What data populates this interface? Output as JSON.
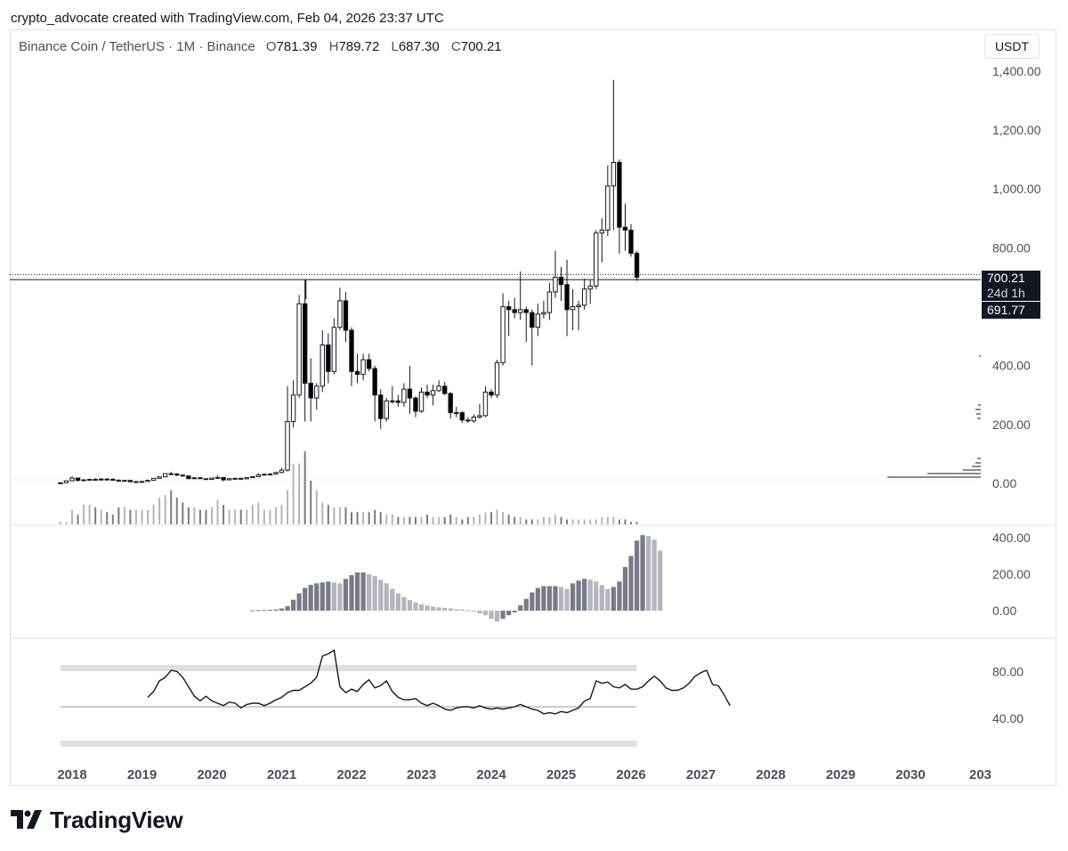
{
  "header": {
    "credit": "crypto_advocate created with TradingView.com, Feb 04, 2026 23:37 UTC"
  },
  "legend": {
    "symbol": "Binance Coin / TetherUS · 1M · Binance",
    "o_label": "O",
    "o_value": "781.39",
    "h_label": "H",
    "h_value": "789.72",
    "l_label": "L",
    "l_value": "687.30",
    "c_label": "C",
    "c_value": "700.21"
  },
  "currency_button": "USDT",
  "price_tags": {
    "last": "700.21",
    "countdown": "24d 1h",
    "level": "691.77"
  },
  "logo": {
    "word": "TradingView"
  },
  "colors": {
    "up": "#ffffff",
    "down": "#000000",
    "wick": "#131722",
    "rsi_line": "#131722",
    "rsi_hot": "#1e3a8a",
    "macd_dark": "#787b86",
    "macd_light": "#b2b5be",
    "band": "#e0e0e0"
  },
  "chart_data": [
    {
      "type": "candlestick",
      "pane": "price",
      "title": "Binance Coin / TetherUS · 1M · Binance",
      "y_axis_ticks": [
        "1,400.00",
        "1,200.00",
        "1,000.00",
        "800.00",
        "400.00",
        "200.00",
        "0.00"
      ],
      "ylim": [
        0,
        1400
      ],
      "x_axis_ticks": [
        "2018",
        "2019",
        "2020",
        "2021",
        "2022",
        "2023",
        "2024",
        "2025",
        "2026",
        "2027",
        "2028",
        "2029",
        "2030",
        "203"
      ],
      "horizontal_level": 691.77,
      "last_price": 700.21,
      "series": [
        {
          "date": "2017-11",
          "o": 1.5,
          "h": 2.5,
          "l": 1.0,
          "c": 2.0
        },
        {
          "date": "2017-12",
          "o": 2.0,
          "h": 9.0,
          "l": 1.8,
          "c": 8.6
        },
        {
          "date": "2018-01",
          "o": 8.6,
          "h": 25.0,
          "l": 8.0,
          "c": 18.0
        },
        {
          "date": "2018-02",
          "o": 18.0,
          "h": 20.0,
          "l": 6.5,
          "c": 10.0
        },
        {
          "date": "2018-03",
          "o": 10.0,
          "h": 14.0,
          "l": 9.5,
          "c": 12.0
        },
        {
          "date": "2018-04",
          "o": 12.0,
          "h": 16.0,
          "l": 11.0,
          "c": 13.5
        },
        {
          "date": "2018-05",
          "o": 13.5,
          "h": 17.5,
          "l": 12.5,
          "c": 13.0
        },
        {
          "date": "2018-06",
          "o": 13.0,
          "h": 18.0,
          "l": 12.0,
          "c": 14.5
        },
        {
          "date": "2018-07",
          "o": 14.5,
          "h": 18.0,
          "l": 13.5,
          "c": 14.0
        },
        {
          "date": "2018-08",
          "o": 14.0,
          "h": 17.0,
          "l": 9.0,
          "c": 10.5
        },
        {
          "date": "2018-09",
          "o": 10.5,
          "h": 14.0,
          "l": 9.5,
          "c": 10.0
        },
        {
          "date": "2018-10",
          "o": 10.0,
          "h": 11.0,
          "l": 9.5,
          "c": 10.0
        },
        {
          "date": "2018-11",
          "o": 10.0,
          "h": 10.5,
          "l": 5.0,
          "c": 5.5
        },
        {
          "date": "2018-12",
          "o": 5.5,
          "h": 7.0,
          "l": 4.5,
          "c": 6.0
        },
        {
          "date": "2019-01",
          "o": 6.0,
          "h": 7.0,
          "l": 5.0,
          "c": 6.5
        },
        {
          "date": "2019-02",
          "o": 6.5,
          "h": 11.5,
          "l": 6.0,
          "c": 10.5
        },
        {
          "date": "2019-03",
          "o": 10.5,
          "h": 17.0,
          "l": 10.0,
          "c": 17.0
        },
        {
          "date": "2019-04",
          "o": 17.0,
          "h": 25.0,
          "l": 16.0,
          "c": 22.0
        },
        {
          "date": "2019-05",
          "o": 22.0,
          "h": 34.0,
          "l": 20.0,
          "c": 33.0
        },
        {
          "date": "2019-06",
          "o": 33.0,
          "h": 39.0,
          "l": 28.0,
          "c": 32.0
        },
        {
          "date": "2019-07",
          "o": 32.0,
          "h": 35.0,
          "l": 25.0,
          "c": 28.0
        },
        {
          "date": "2019-08",
          "o": 28.0,
          "h": 30.0,
          "l": 22.0,
          "c": 25.0
        },
        {
          "date": "2019-09",
          "o": 25.0,
          "h": 27.0,
          "l": 15.0,
          "c": 16.0
        },
        {
          "date": "2019-10",
          "o": 16.0,
          "h": 21.0,
          "l": 14.5,
          "c": 19.0
        },
        {
          "date": "2019-11",
          "o": 19.0,
          "h": 22.0,
          "l": 15.0,
          "c": 16.0
        },
        {
          "date": "2019-12",
          "o": 16.0,
          "h": 16.5,
          "l": 12.5,
          "c": 13.5
        },
        {
          "date": "2020-01",
          "o": 13.5,
          "h": 19.0,
          "l": 13.0,
          "c": 18.0
        },
        {
          "date": "2020-02",
          "o": 18.0,
          "h": 27.0,
          "l": 17.5,
          "c": 20.0
        },
        {
          "date": "2020-03",
          "o": 20.0,
          "h": 21.0,
          "l": 6.5,
          "c": 12.0
        },
        {
          "date": "2020-04",
          "o": 12.0,
          "h": 17.5,
          "l": 11.0,
          "c": 16.0
        },
        {
          "date": "2020-05",
          "o": 16.0,
          "h": 18.5,
          "l": 14.0,
          "c": 17.0
        },
        {
          "date": "2020-06",
          "o": 17.0,
          "h": 19.0,
          "l": 15.0,
          "c": 15.5
        },
        {
          "date": "2020-07",
          "o": 15.5,
          "h": 20.0,
          "l": 15.0,
          "c": 19.5
        },
        {
          "date": "2020-08",
          "o": 19.5,
          "h": 25.0,
          "l": 19.0,
          "c": 23.0
        },
        {
          "date": "2020-09",
          "o": 23.0,
          "h": 35.0,
          "l": 21.0,
          "c": 29.0
        },
        {
          "date": "2020-10",
          "o": 29.0,
          "h": 33.0,
          "l": 27.0,
          "c": 31.0
        },
        {
          "date": "2020-11",
          "o": 31.0,
          "h": 34.0,
          "l": 26.0,
          "c": 32.0
        },
        {
          "date": "2020-12",
          "o": 32.0,
          "h": 40.0,
          "l": 29.0,
          "c": 37.0
        },
        {
          "date": "2021-01",
          "o": 37.0,
          "h": 52.0,
          "l": 35.0,
          "c": 45.0
        },
        {
          "date": "2021-02",
          "o": 45.0,
          "h": 330.0,
          "l": 40.0,
          "c": 210.0
        },
        {
          "date": "2021-03",
          "o": 210.0,
          "h": 350.0,
          "l": 190.0,
          "c": 300.0
        },
        {
          "date": "2021-04",
          "o": 300.0,
          "h": 640.0,
          "l": 290.0,
          "c": 610.0
        },
        {
          "date": "2021-05",
          "o": 610.0,
          "h": 691.77,
          "l": 210.0,
          "c": 340.0
        },
        {
          "date": "2021-06",
          "o": 340.0,
          "h": 425.0,
          "l": 210.0,
          "c": 290.0
        },
        {
          "date": "2021-07",
          "o": 290.0,
          "h": 340.0,
          "l": 250.0,
          "c": 330.0
        },
        {
          "date": "2021-08",
          "o": 330.0,
          "h": 520.0,
          "l": 310.0,
          "c": 470.0
        },
        {
          "date": "2021-09",
          "o": 470.0,
          "h": 510.0,
          "l": 340.0,
          "c": 380.0
        },
        {
          "date": "2021-10",
          "o": 380.0,
          "h": 560.0,
          "l": 370.0,
          "c": 530.0
        },
        {
          "date": "2021-11",
          "o": 530.0,
          "h": 665.0,
          "l": 520.0,
          "c": 620.0
        },
        {
          "date": "2021-12",
          "o": 620.0,
          "h": 650.0,
          "l": 480.0,
          "c": 520.0
        },
        {
          "date": "2022-01",
          "o": 520.0,
          "h": 530.0,
          "l": 330.0,
          "c": 380.0
        },
        {
          "date": "2022-02",
          "o": 380.0,
          "h": 440.0,
          "l": 340.0,
          "c": 370.0
        },
        {
          "date": "2022-03",
          "o": 370.0,
          "h": 440.0,
          "l": 350.0,
          "c": 420.0
        },
        {
          "date": "2022-04",
          "o": 420.0,
          "h": 440.0,
          "l": 380.0,
          "c": 390.0
        },
        {
          "date": "2022-05",
          "o": 390.0,
          "h": 400.0,
          "l": 210.0,
          "c": 300.0
        },
        {
          "date": "2022-06",
          "o": 300.0,
          "h": 320.0,
          "l": 185.0,
          "c": 220.0
        },
        {
          "date": "2022-07",
          "o": 220.0,
          "h": 290.0,
          "l": 210.0,
          "c": 280.0
        },
        {
          "date": "2022-08",
          "o": 280.0,
          "h": 330.0,
          "l": 270.0,
          "c": 280.0
        },
        {
          "date": "2022-09",
          "o": 280.0,
          "h": 300.0,
          "l": 260.0,
          "c": 275.0
        },
        {
          "date": "2022-10",
          "o": 275.0,
          "h": 340.0,
          "l": 260.0,
          "c": 320.0
        },
        {
          "date": "2022-11",
          "o": 320.0,
          "h": 400.0,
          "l": 235.0,
          "c": 290.0
        },
        {
          "date": "2022-12",
          "o": 290.0,
          "h": 295.0,
          "l": 225.0,
          "c": 245.0
        },
        {
          "date": "2023-01",
          "o": 245.0,
          "h": 325.0,
          "l": 240.0,
          "c": 310.0
        },
        {
          "date": "2023-02",
          "o": 310.0,
          "h": 335.0,
          "l": 290.0,
          "c": 300.0
        },
        {
          "date": "2023-03",
          "o": 300.0,
          "h": 335.0,
          "l": 265.0,
          "c": 315.0
        },
        {
          "date": "2023-04",
          "o": 315.0,
          "h": 350.0,
          "l": 310.0,
          "c": 330.0
        },
        {
          "date": "2023-05",
          "o": 330.0,
          "h": 345.0,
          "l": 300.0,
          "c": 305.0
        },
        {
          "date": "2023-06",
          "o": 305.0,
          "h": 310.0,
          "l": 220.0,
          "c": 240.0
        },
        {
          "date": "2023-07",
          "o": 240.0,
          "h": 260.0,
          "l": 225.0,
          "c": 240.0
        },
        {
          "date": "2023-08",
          "o": 240.0,
          "h": 245.0,
          "l": 205.0,
          "c": 215.0
        },
        {
          "date": "2023-09",
          "o": 215.0,
          "h": 225.0,
          "l": 205.0,
          "c": 212.0
        },
        {
          "date": "2023-10",
          "o": 212.0,
          "h": 235.0,
          "l": 205.0,
          "c": 225.0
        },
        {
          "date": "2023-11",
          "o": 225.0,
          "h": 270.0,
          "l": 220.0,
          "c": 230.0
        },
        {
          "date": "2023-12",
          "o": 230.0,
          "h": 330.0,
          "l": 225.0,
          "c": 310.0
        },
        {
          "date": "2024-01",
          "o": 310.0,
          "h": 320.0,
          "l": 290.0,
          "c": 300.0
        },
        {
          "date": "2024-02",
          "o": 300.0,
          "h": 420.0,
          "l": 290.0,
          "c": 410.0
        },
        {
          "date": "2024-03",
          "o": 410.0,
          "h": 645.0,
          "l": 400.0,
          "c": 600.0
        },
        {
          "date": "2024-04",
          "o": 600.0,
          "h": 620.0,
          "l": 500.0,
          "c": 590.0
        },
        {
          "date": "2024-05",
          "o": 590.0,
          "h": 630.0,
          "l": 560.0,
          "c": 580.0
        },
        {
          "date": "2024-06",
          "o": 580.0,
          "h": 720.0,
          "l": 555.0,
          "c": 590.0
        },
        {
          "date": "2024-07",
          "o": 590.0,
          "h": 600.0,
          "l": 480.0,
          "c": 580.0
        },
        {
          "date": "2024-08",
          "o": 580.0,
          "h": 590.0,
          "l": 400.0,
          "c": 530.0
        },
        {
          "date": "2024-09",
          "o": 530.0,
          "h": 610.0,
          "l": 500.0,
          "c": 575.0
        },
        {
          "date": "2024-10",
          "o": 575.0,
          "h": 620.0,
          "l": 560.0,
          "c": 580.0
        },
        {
          "date": "2024-11",
          "o": 580.0,
          "h": 680.0,
          "l": 555.0,
          "c": 650.0
        },
        {
          "date": "2024-12",
          "o": 650.0,
          "h": 790.0,
          "l": 630.0,
          "c": 700.0
        },
        {
          "date": "2025-01",
          "o": 700.0,
          "h": 735.0,
          "l": 620.0,
          "c": 675.0
        },
        {
          "date": "2025-02",
          "o": 675.0,
          "h": 760.0,
          "l": 500.0,
          "c": 590.0
        },
        {
          "date": "2025-03",
          "o": 590.0,
          "h": 660.0,
          "l": 520.0,
          "c": 600.0
        },
        {
          "date": "2025-04",
          "o": 600.0,
          "h": 620.0,
          "l": 520.0,
          "c": 605.0
        },
        {
          "date": "2025-05",
          "o": 605.0,
          "h": 695.0,
          "l": 590.0,
          "c": 660.0
        },
        {
          "date": "2025-06",
          "o": 660.0,
          "h": 690.0,
          "l": 610.0,
          "c": 670.0
        },
        {
          "date": "2025-07",
          "o": 670.0,
          "h": 860.0,
          "l": 660.0,
          "c": 850.0
        },
        {
          "date": "2025-08",
          "o": 850.0,
          "h": 900.0,
          "l": 750.0,
          "c": 860.0
        },
        {
          "date": "2025-09",
          "o": 860.0,
          "h": 1080.0,
          "l": 840.0,
          "c": 1010.0
        },
        {
          "date": "2025-10",
          "o": 1010.0,
          "h": 1370.0,
          "l": 860.0,
          "c": 1090.0
        },
        {
          "date": "2025-11",
          "o": 1090.0,
          "h": 1100.0,
          "l": 780.0,
          "c": 870.0
        },
        {
          "date": "2025-12",
          "o": 870.0,
          "h": 950.0,
          "l": 790.0,
          "c": 860.0
        },
        {
          "date": "2026-01",
          "o": 860.0,
          "h": 880.0,
          "l": 770.0,
          "c": 781.39
        },
        {
          "date": "2026-02",
          "o": 781.39,
          "h": 789.72,
          "l": 687.3,
          "c": 700.21
        }
      ],
      "volume": [
        1,
        1,
        6,
        4,
        8,
        8,
        7,
        6,
        5,
        4,
        7,
        7,
        6,
        6,
        6,
        6,
        8,
        11,
        12,
        14,
        11,
        9,
        7,
        7,
        6,
        6,
        7,
        10,
        8,
        6,
        6,
        6,
        6,
        8,
        9,
        6,
        6,
        7,
        8,
        14,
        25,
        25,
        30,
        18,
        14,
        9,
        8,
        7,
        7,
        7,
        5,
        5,
        5,
        5,
        6,
        5,
        4,
        4,
        3,
        3,
        3,
        3,
        3,
        4,
        3,
        3,
        3,
        4,
        3,
        2,
        3,
        3,
        4,
        5,
        5,
        6,
        5,
        4,
        3,
        3,
        2,
        2,
        2,
        3,
        3,
        4,
        3,
        2,
        2,
        2,
        2,
        2,
        2,
        3,
        3,
        3,
        2,
        2,
        1,
        1
      ],
      "volume_profile": "horizontal histogram at right edge, concentrated near 0 - 200"
    },
    {
      "type": "bar",
      "pane": "oscillator",
      "y_axis_ticks": [
        "400.00",
        "200.00",
        "0.00"
      ],
      "ylim": [
        -100,
        420
      ],
      "start": "2020-08",
      "values": [
        2,
        3,
        4,
        5,
        6,
        12,
        25,
        60,
        95,
        125,
        142,
        150,
        155,
        160,
        155,
        150,
        175,
        195,
        210,
        210,
        200,
        190,
        170,
        150,
        120,
        95,
        75,
        58,
        45,
        35,
        28,
        22,
        18,
        15,
        12,
        8,
        6,
        3,
        -5,
        -15,
        -25,
        -45,
        -60,
        -45,
        -25,
        -10,
        30,
        65,
        100,
        125,
        135,
        135,
        135,
        130,
        120,
        150,
        165,
        175,
        170,
        160,
        140,
        120,
        130,
        160,
        240,
        300,
        385,
        415,
        410,
        390,
        330
      ],
      "color_rule": "dark grey while increasing, light grey while decreasing"
    },
    {
      "type": "line",
      "pane": "RSI",
      "y_axis_ticks": [
        "80.00",
        "40.00"
      ],
      "ylim": [
        20,
        100
      ],
      "bands": [
        82,
        50,
        17
      ],
      "start": "2019-02",
      "values": [
        58,
        63,
        72,
        75,
        81,
        80,
        75,
        67,
        59,
        55,
        59,
        55,
        53,
        51,
        54,
        53,
        49,
        52,
        53,
        53,
        51,
        53,
        56,
        58,
        62,
        64,
        64,
        67,
        70,
        75,
        93,
        95,
        98,
        67,
        62,
        65,
        63,
        69,
        73,
        66,
        68,
        72,
        63,
        58,
        56,
        56,
        57,
        53,
        51,
        53,
        51,
        48,
        47,
        49,
        50,
        50,
        49,
        51,
        49,
        48,
        49,
        48,
        49,
        50,
        52,
        50,
        48,
        47,
        44,
        45,
        44,
        46,
        45,
        47,
        49,
        55,
        57,
        72,
        70,
        71,
        67,
        66,
        69,
        65,
        65,
        67,
        72,
        76,
        72,
        66,
        64,
        64,
        66,
        70,
        76,
        79,
        81,
        69,
        68,
        60,
        51
      ]
    }
  ]
}
